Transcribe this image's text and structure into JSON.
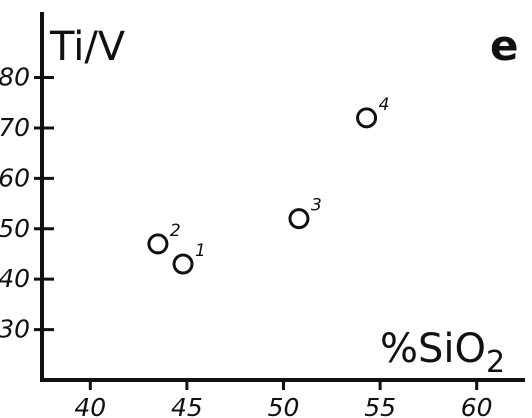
{
  "chart_data": {
    "type": "scatter",
    "ylabel": "Ti/V",
    "xlabel": "%SiO2",
    "panel_letter": "e",
    "xlim": [
      37.5,
      62.5
    ],
    "ylim": [
      20,
      93
    ],
    "x_ticks": [
      40,
      45,
      50,
      55,
      60
    ],
    "y_ticks": [
      30,
      40,
      50,
      60,
      70,
      80
    ],
    "grid": false,
    "points": [
      {
        "label": "1",
        "x": 44.8,
        "y": 43
      },
      {
        "label": "2",
        "x": 43.5,
        "y": 47
      },
      {
        "label": "3",
        "x": 50.8,
        "y": 52
      },
      {
        "label": "4",
        "x": 54.3,
        "y": 72
      }
    ]
  }
}
